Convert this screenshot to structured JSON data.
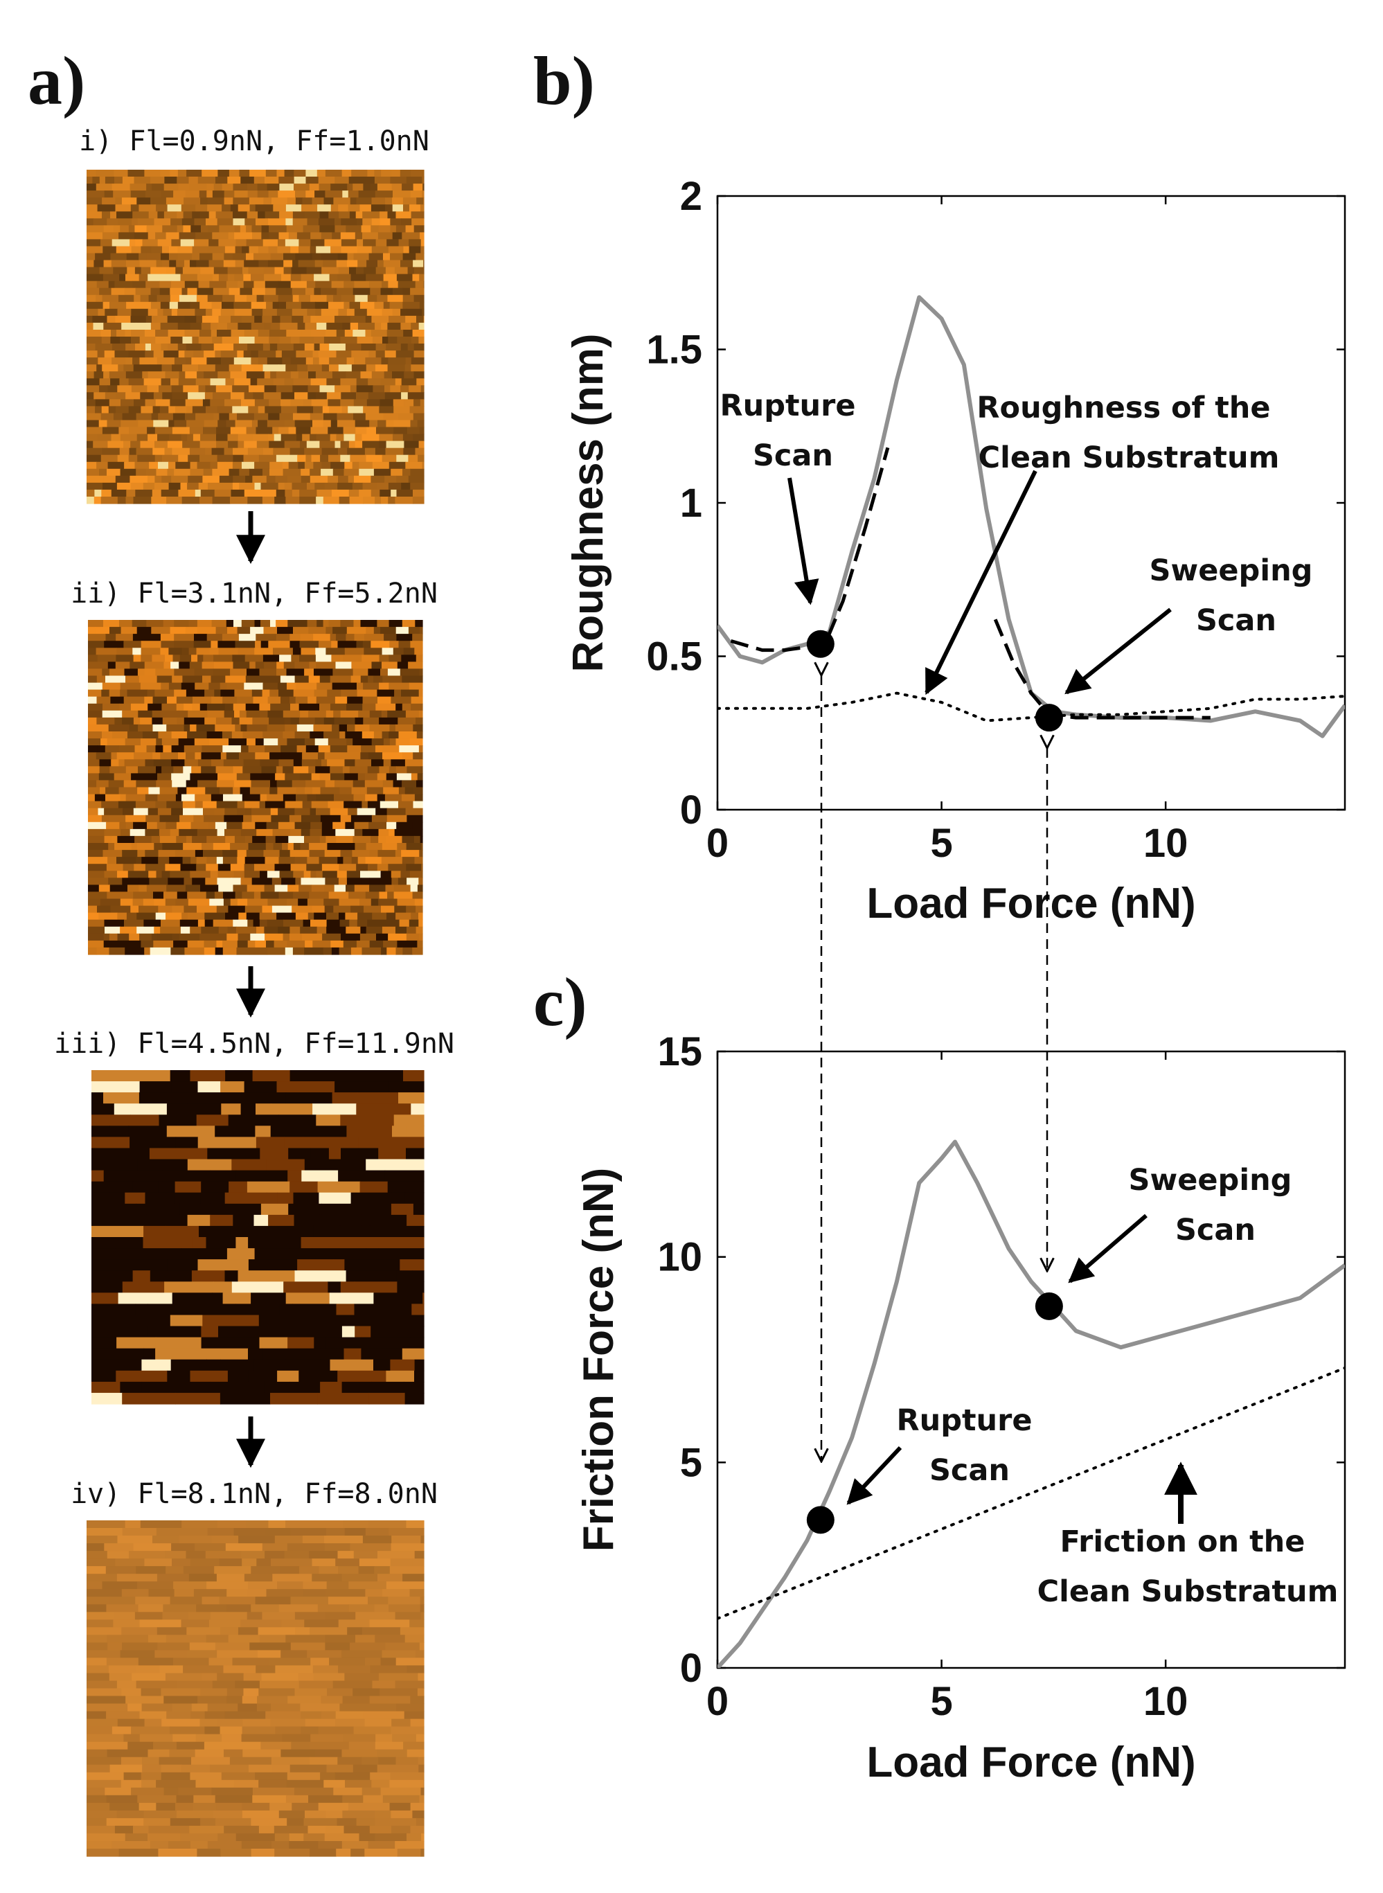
{
  "panel_labels": {
    "a": "a)",
    "b": "b)",
    "c": "c)"
  },
  "afm_images": [
    {
      "caption": "i) Fl=0.9nN, Ff=1.0nN",
      "style": "fine",
      "base_color": "#b36a17"
    },
    {
      "caption": "ii) Fl=3.1nN, Ff=5.2nN",
      "style": "medium",
      "base_color": "#a85f12"
    },
    {
      "caption": "iii) Fl=4.5nN, Ff=11.9nN",
      "style": "streaky",
      "base_color": "#3a1500"
    },
    {
      "caption": "iv) Fl=8.1nN, Ff=8.0nN",
      "style": "smooth",
      "base_color": "#c07a2c"
    }
  ],
  "chart_data": [
    {
      "type": "line",
      "panel": "b",
      "xlabel": "Load Force (nN)",
      "ylabel": "Roughness (nm)",
      "xlim": [
        0,
        14
      ],
      "ylim": [
        0,
        2
      ],
      "xticks": [
        0,
        5,
        10
      ],
      "yticks": [
        0,
        0.5,
        1,
        1.5,
        2
      ],
      "series": [
        {
          "style": "solid-gray",
          "color": "#909090",
          "x": [
            0,
            0.5,
            1.0,
            1.5,
            2.0,
            2.5,
            3.0,
            3.5,
            4.0,
            4.5,
            5.0,
            5.5,
            6.0,
            6.5,
            7.0,
            7.5,
            8.0,
            9.0,
            10.0,
            11.0,
            12.0,
            13.0,
            13.5,
            14.0
          ],
          "y": [
            0.6,
            0.5,
            0.48,
            0.52,
            0.54,
            0.58,
            0.84,
            1.08,
            1.4,
            1.67,
            1.6,
            1.45,
            0.98,
            0.62,
            0.38,
            0.32,
            0.31,
            0.3,
            0.3,
            0.29,
            0.32,
            0.29,
            0.24,
            0.34
          ]
        },
        {
          "style": "dashed-black",
          "color": "#000000",
          "x": [
            0.3,
            1.0,
            1.5,
            2.0,
            2.4,
            2.8,
            3.3,
            3.8
          ],
          "y": [
            0.55,
            0.52,
            0.52,
            0.53,
            0.54,
            0.68,
            0.92,
            1.18
          ]
        },
        {
          "style": "dashed-black",
          "color": "#000000",
          "x": [
            6.2,
            6.6,
            7.0,
            7.4,
            8.0,
            9.0,
            10.0,
            11.0
          ],
          "y": [
            0.62,
            0.48,
            0.38,
            0.31,
            0.3,
            0.3,
            0.3,
            0.3
          ]
        },
        {
          "style": "dotted-black",
          "color": "#000000",
          "x": [
            0,
            1,
            2,
            3,
            4,
            5,
            5.5,
            6,
            7,
            8,
            9,
            10,
            11,
            12,
            13,
            14
          ],
          "y": [
            0.33,
            0.33,
            0.33,
            0.35,
            0.38,
            0.35,
            0.32,
            0.29,
            0.3,
            0.31,
            0.31,
            0.32,
            0.33,
            0.36,
            0.36,
            0.37
          ]
        }
      ],
      "markers": [
        {
          "name": "rupture-point",
          "x": 2.3,
          "y": 0.54
        },
        {
          "name": "sweeping-point",
          "x": 7.4,
          "y": 0.3
        }
      ],
      "annotations": [
        {
          "id": "rupture",
          "lines": [
            "Rupture",
            "Scan"
          ]
        },
        {
          "id": "roughness",
          "lines": [
            "Roughness of the",
            "Clean Substratum"
          ]
        },
        {
          "id": "sweeping",
          "lines": [
            "Sweeping",
            "Scan"
          ]
        }
      ]
    },
    {
      "type": "line",
      "panel": "c",
      "xlabel": "Load Force (nN)",
      "ylabel": "Friction Force (nN)",
      "xlim": [
        0,
        14
      ],
      "ylim": [
        0,
        15
      ],
      "xticks": [
        0,
        5,
        10
      ],
      "yticks": [
        0,
        5,
        10,
        15
      ],
      "series": [
        {
          "style": "solid-gray",
          "color": "#909090",
          "x": [
            0,
            0.5,
            1.0,
            1.5,
            2.0,
            2.5,
            3.0,
            3.5,
            4.0,
            4.5,
            5.0,
            5.3,
            5.8,
            6.5,
            7.0,
            7.5,
            8.0,
            9.0,
            10.0,
            11.0,
            12.0,
            13.0,
            14.0
          ],
          "y": [
            0,
            0.6,
            1.4,
            2.2,
            3.1,
            4.3,
            5.6,
            7.4,
            9.4,
            11.8,
            12.4,
            12.8,
            11.8,
            10.2,
            9.4,
            8.8,
            8.2,
            7.8,
            8.1,
            8.4,
            8.7,
            9.0,
            9.8
          ]
        },
        {
          "style": "dotted-black",
          "color": "#000000",
          "x": [
            0,
            14
          ],
          "y": [
            1.2,
            7.3
          ]
        }
      ],
      "markers": [
        {
          "name": "rupture-point",
          "x": 2.3,
          "y": 3.6
        },
        {
          "name": "sweeping-point",
          "x": 7.4,
          "y": 8.8
        }
      ],
      "annotations": [
        {
          "id": "sweeping",
          "lines": [
            "Sweeping",
            "Scan"
          ]
        },
        {
          "id": "rupture",
          "lines": [
            "Rupture",
            "Scan"
          ]
        },
        {
          "id": "friction",
          "lines": [
            "Friction on the",
            "Clean Substratum"
          ]
        }
      ]
    }
  ]
}
